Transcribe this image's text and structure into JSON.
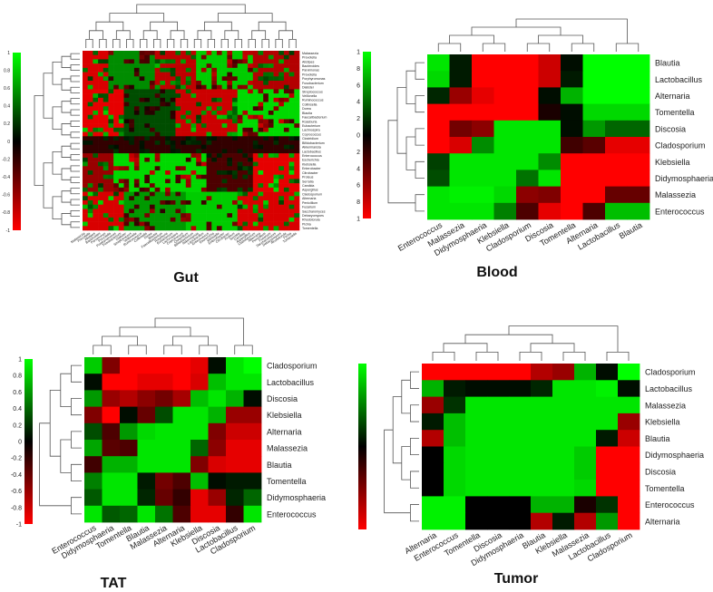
{
  "panels": [
    {
      "title": "Gut",
      "colorbar": {
        "ticks": [
          "1",
          "0.8",
          "0.6",
          "0.4",
          "0.2",
          "0",
          "-0.2",
          "-0.4",
          "-0.6",
          "-0.8",
          "-1"
        ]
      },
      "row_labels": [
        "Malassezia",
        "Prevotella",
        "Alistipes",
        "Bacteroides",
        "Parvimonas",
        "Prevotella",
        "Porphyromonas",
        "Fusobacterium",
        "Dialister",
        "Streptococcus",
        "Veillonella",
        "Ruminococcus",
        "Collinsella",
        "Dorea",
        "Blautia",
        "Faecalibacterium",
        "Roseburia",
        "Eubacterium",
        "Lachnospira",
        "Coprococcus",
        "Clostridium",
        "Bifidobacterium",
        "Akkermansia",
        "Lactobacillus",
        "Enterococcus",
        "Escherichia",
        "Klebsiella",
        "Enterobacter",
        "Citrobacter",
        "Proteus",
        "Serratia",
        "Candida",
        "Aspergillus",
        "Cladosporium",
        "Alternaria",
        "Penicillium",
        "Fusarium",
        "Saccharomyces",
        "Debaryomyces",
        "Rhodotorula",
        "Pichia",
        "Tomentella"
      ],
      "chart_data": {
        "type": "heatmap",
        "title": "Gut",
        "ylim": [
          -1,
          1
        ],
        "rows": 42,
        "cols": 42,
        "blocks": [
          {
            "r0": 0,
            "r1": 9,
            "c0": 0,
            "c1": 5,
            "v": -0.85
          },
          {
            "r0": 0,
            "r1": 9,
            "c0": 5,
            "c1": 14,
            "v": 0.55
          },
          {
            "r0": 0,
            "r1": 9,
            "c0": 14,
            "c1": 22,
            "v": -0.75
          },
          {
            "r0": 0,
            "r1": 9,
            "c0": 22,
            "c1": 33,
            "v": 0.8
          },
          {
            "r0": 0,
            "r1": 9,
            "c0": 33,
            "c1": 42,
            "v": -0.7
          },
          {
            "r0": 9,
            "r1": 20,
            "c0": 0,
            "c1": 8,
            "v": -0.9
          },
          {
            "r0": 9,
            "r1": 20,
            "c0": 8,
            "c1": 18,
            "v": 0.3
          },
          {
            "r0": 9,
            "r1": 20,
            "c0": 18,
            "c1": 30,
            "v": -0.8
          },
          {
            "r0": 9,
            "r1": 20,
            "c0": 30,
            "c1": 42,
            "v": 0.85
          },
          {
            "r0": 20,
            "r1": 24,
            "c0": 0,
            "c1": 42,
            "v": -0.2
          },
          {
            "r0": 24,
            "r1": 33,
            "c0": 0,
            "c1": 6,
            "v": -0.6
          },
          {
            "r0": 24,
            "r1": 33,
            "c0": 6,
            "c1": 24,
            "v": 0.85
          },
          {
            "r0": 24,
            "r1": 33,
            "c0": 24,
            "c1": 33,
            "v": -0.3
          },
          {
            "r0": 24,
            "r1": 33,
            "c0": 33,
            "c1": 42,
            "v": -0.9
          },
          {
            "r0": 33,
            "r1": 42,
            "c0": 0,
            "c1": 8,
            "v": -0.85
          },
          {
            "r0": 33,
            "r1": 42,
            "c0": 8,
            "c1": 20,
            "v": 0.6
          },
          {
            "r0": 33,
            "r1": 42,
            "c0": 20,
            "c1": 30,
            "v": 0.8
          },
          {
            "r0": 33,
            "r1": 42,
            "c0": 30,
            "c1": 42,
            "v": -0.85
          }
        ],
        "noise": 0.55
      }
    },
    {
      "title": "Blood",
      "colorbar": {
        "ticks": [
          "1",
          "0.8",
          "0.6",
          "0.4",
          "0.2",
          "0",
          "-0.2",
          "-0.4",
          "-0.6",
          "-0.8",
          "-1"
        ]
      },
      "row_labels": [
        "Blautia",
        "Lactobacillus",
        "Alternaria",
        "Tomentella",
        "Discosia",
        "Cladosporium",
        "Klebsiella",
        "Didymosphaeria",
        "Malassezia",
        "Enterococcus"
      ],
      "col_labels": [
        "Enterococcus",
        "Malassezia",
        "Didymosphaeria",
        "Klebsiella",
        "Cladosporium",
        "Discosia",
        "Tomentella",
        "Alternaria",
        "Lactobacillus",
        "Blautia"
      ],
      "chart_data": {
        "type": "heatmap",
        "title": "Blood",
        "ylim": [
          -1,
          1
        ],
        "values": [
          [
            0.9,
            0.1,
            -1,
            -1,
            -1,
            -0.8,
            0.05,
            1,
            1,
            1
          ],
          [
            0.85,
            0.1,
            -1,
            -1,
            -1,
            -0.8,
            0.1,
            1,
            1,
            1
          ],
          [
            0.15,
            -0.6,
            -0.9,
            -1,
            -1,
            0.05,
            0.7,
            1,
            1,
            1
          ],
          [
            -1,
            -1,
            -1,
            -1,
            -1,
            -0.1,
            0.05,
            0.85,
            0.85,
            0.85
          ],
          [
            -1,
            -0.45,
            -0.55,
            0.9,
            0.9,
            0.9,
            0.05,
            0.6,
            0.4,
            0.4
          ],
          [
            -1,
            -0.85,
            0.55,
            0.9,
            0.9,
            0.9,
            -0.25,
            -0.35,
            -0.9,
            -0.9
          ],
          [
            0.25,
            0.9,
            0.9,
            0.9,
            0.9,
            0.55,
            -1,
            -1,
            -1,
            -1
          ],
          [
            0.3,
            0.9,
            0.9,
            0.9,
            0.45,
            0.9,
            -1,
            -1,
            -1,
            -1
          ],
          [
            0.9,
            0.95,
            0.95,
            0.85,
            -0.55,
            -0.5,
            -1,
            -1,
            -0.4,
            -0.4
          ],
          [
            0.9,
            0.9,
            0.9,
            0.5,
            -0.3,
            -0.9,
            -1,
            -0.3,
            0.75,
            0.75
          ]
        ]
      }
    },
    {
      "title": "TAT",
      "colorbar": {
        "ticks": [
          "1",
          "0.8",
          "0.6",
          "0.4",
          "0.2",
          "0",
          "-0.2",
          "-0.4",
          "-0.6",
          "-0.8",
          "-1"
        ]
      },
      "row_labels": [
        "Cladosporium",
        "Lactobacillus",
        "Discosia",
        "Klebsiella",
        "Alternaria",
        "Malassezia",
        "Blautia",
        "Tomentella",
        "Didymosphaeria",
        "Enterococcus"
      ],
      "col_labels": [
        "Enterococcus",
        "Didymosphaeria",
        "Tomentella",
        "Blautia",
        "Malassezia",
        "Alternaria",
        "Klebsiella",
        "Discosia",
        "Lactobacillus",
        "Cladosporium"
      ],
      "chart_data": {
        "type": "heatmap",
        "title": "TAT",
        "ylim": [
          -1,
          1
        ],
        "values": [
          [
            0.8,
            -0.5,
            -1,
            -1,
            -1,
            -1,
            -0.9,
            0.05,
            0.9,
            1
          ],
          [
            0.05,
            -1,
            -1,
            -0.9,
            -0.9,
            -1,
            -0.85,
            0.75,
            0.9,
            0.9
          ],
          [
            0.6,
            -0.6,
            -0.7,
            -0.55,
            -0.45,
            -0.65,
            0.75,
            0.9,
            0.7,
            0.05
          ],
          [
            -0.5,
            -1,
            0.05,
            -0.4,
            0.3,
            0.9,
            0.9,
            0.7,
            -0.6,
            -0.6
          ],
          [
            0.3,
            -0.3,
            0.6,
            0.85,
            0.9,
            0.9,
            0.9,
            -0.5,
            -0.8,
            -0.8
          ],
          [
            0.65,
            -0.35,
            -0.3,
            0.9,
            0.9,
            0.9,
            0.4,
            -0.55,
            -0.9,
            -0.9
          ],
          [
            -0.25,
            0.7,
            0.7,
            0.9,
            0.9,
            0.9,
            -0.5,
            -0.85,
            -0.9,
            -0.9
          ],
          [
            0.5,
            0.9,
            0.9,
            0.1,
            -0.45,
            -0.3,
            0.75,
            0.05,
            0.1,
            0.1
          ],
          [
            0.35,
            0.9,
            0.9,
            0.15,
            -0.4,
            -0.2,
            -0.9,
            -0.6,
            0.15,
            0.4
          ],
          [
            0.9,
            0.35,
            0.4,
            0.9,
            0.45,
            -0.3,
            -0.9,
            -0.9,
            -0.2,
            0.9
          ]
        ]
      }
    },
    {
      "title": "Tumor",
      "colorbar": {
        "ticks": [
          "1",
          "0.8",
          "0.6",
          "0.4",
          "0.2",
          "0",
          "-0.2",
          "-0.4",
          "-0.6",
          "-0.8",
          "-1"
        ]
      },
      "row_labels": [
        "Cladosporium",
        "Lactobacillus",
        "Malassezia",
        "Klebsiella",
        "Blautia",
        "Didymosphaeria",
        "Discosia",
        "Tomentella",
        "Enterococcus",
        "Alternaria"
      ],
      "col_labels": [
        "Alternaria",
        "Enterococcus",
        "Tomentella",
        "Discosia",
        "Didymosphaeria",
        "Blautia",
        "Klebsiella",
        "Malassezia",
        "Lactobacillus",
        "Cladosporium"
      ],
      "chart_data": {
        "type": "heatmap",
        "title": "Tumor",
        "ylim": [
          -1,
          1
        ],
        "values": [
          [
            -1,
            -1,
            -1,
            -1,
            -1,
            -0.7,
            -0.6,
            0.7,
            0.05,
            1
          ],
          [
            0.7,
            0.1,
            0.05,
            0.05,
            0.05,
            0.15,
            0.9,
            0.9,
            0.95,
            0.05
          ],
          [
            -0.6,
            0.2,
            0.9,
            0.9,
            0.9,
            0.9,
            0.9,
            0.9,
            0.9,
            0.9
          ],
          [
            0.1,
            0.75,
            0.9,
            0.9,
            0.9,
            0.9,
            0.9,
            0.9,
            0.9,
            -0.6
          ],
          [
            -0.7,
            0.75,
            0.9,
            0.9,
            0.9,
            0.9,
            0.9,
            0.9,
            0.1,
            -0.8
          ],
          [
            0.0,
            0.85,
            0.9,
            0.9,
            0.9,
            0.9,
            0.9,
            0.8,
            -1,
            -1
          ],
          [
            0.0,
            0.85,
            0.9,
            0.9,
            0.9,
            0.9,
            0.9,
            0.8,
            -1,
            -1
          ],
          [
            0.0,
            0.85,
            0.9,
            0.9,
            0.9,
            0.9,
            0.9,
            0.85,
            -1,
            -1
          ],
          [
            0.95,
            0.95,
            0.0,
            0.0,
            0.0,
            0.7,
            0.7,
            -0.1,
            0.2,
            -1
          ],
          [
            0.95,
            0.95,
            0.0,
            0.0,
            0.0,
            -0.7,
            0.1,
            -0.7,
            0.6,
            -1
          ]
        ]
      }
    }
  ]
}
